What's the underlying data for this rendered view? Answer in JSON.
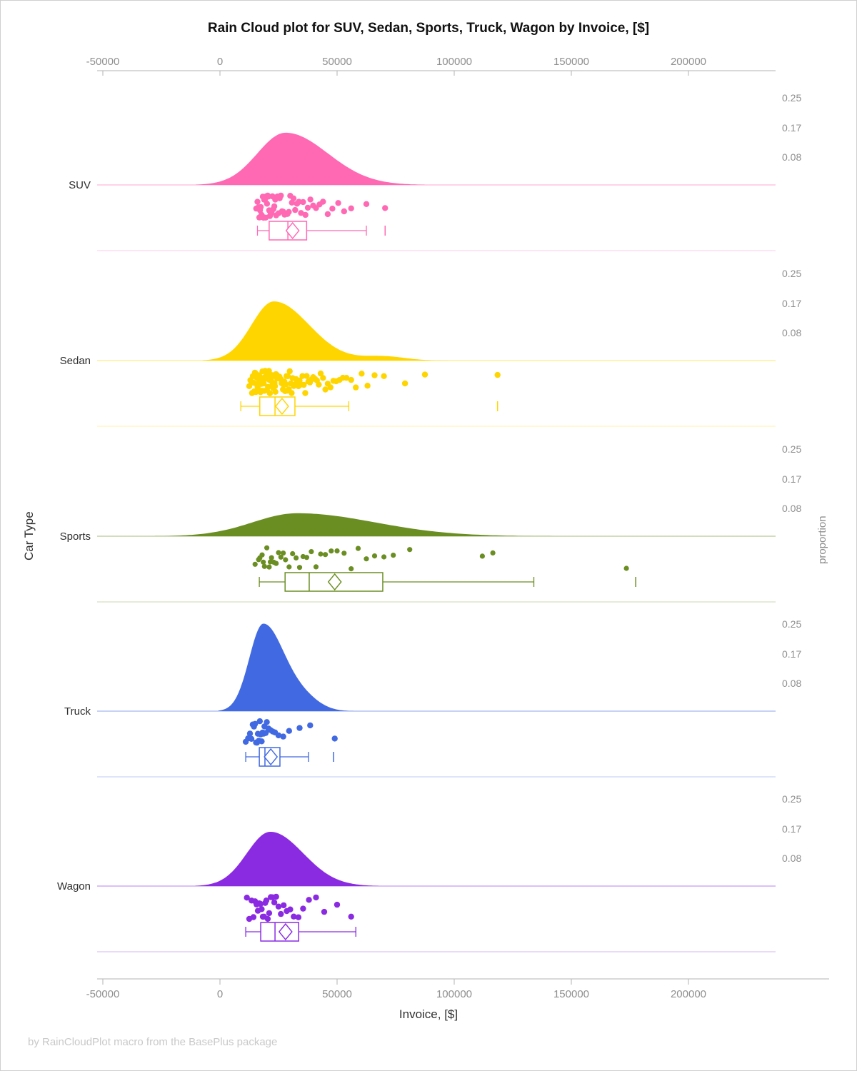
{
  "title": "Rain Cloud plot for SUV, Sedan, Sports, Truck, Wagon by Invoice, [$]",
  "footer": "by RainCloudPlot macro from the BasePlus package",
  "axes": {
    "x_label": "Invoice, [$]",
    "y_label": "Car Type",
    "y2_label": "proportion",
    "x_tick_labels": [
      "-50000",
      "0",
      "50000",
      "100000",
      "150000",
      "200000"
    ],
    "proportion_tick_labels": [
      "0.25",
      "0.17",
      "0.08"
    ]
  },
  "chart_data": {
    "type": "raincloud (half-violin density + jittered scatter + box plot per category)",
    "title": "Rain Cloud plot for SUV, Sedan, Sports, Truck, Wagon by Invoice, [$]",
    "xlabel": "Invoice, [$]",
    "ylabel": "Car Type",
    "y2label": "proportion",
    "x_unit": "USD",
    "x_ticks": [
      -50000,
      0,
      50000,
      100000,
      150000,
      200000
    ],
    "x_range": [
      -52500,
      237000
    ],
    "proportion_ticks": [
      0.25,
      0.17,
      0.08
    ],
    "categories": [
      "SUV",
      "Sedan",
      "Sports",
      "Truck",
      "Wagon"
    ],
    "series": [
      {
        "name": "SUV",
        "color": "#FF69B4",
        "density": {
          "peak_at": 28000,
          "sigma_left": 12000,
          "sigma_right": 18000,
          "peak_proportion": 0.15
        },
        "box": {
          "whisker_low": 16000,
          "q1": 21000,
          "median": 29000,
          "mean": 31000,
          "q3": 37000,
          "whisker_high": 62500,
          "outliers": [
            70500
          ]
        },
        "points": [
          15500,
          16000,
          16400,
          16800,
          17100,
          17400,
          17700,
          18000,
          18300,
          18600,
          18900,
          19200,
          19500,
          19800,
          20100,
          20400,
          20700,
          21000,
          21300,
          21700,
          22000,
          22400,
          22800,
          23200,
          23600,
          24000,
          24500,
          25000,
          25500,
          26000,
          26500,
          27000,
          27600,
          28200,
          28800,
          29400,
          30000,
          30700,
          31400,
          32100,
          32900,
          33700,
          34600,
          35500,
          36500,
          37500,
          38600,
          39800,
          41000,
          42500,
          44000,
          46000,
          48000,
          50500,
          53000,
          56000,
          62500,
          70500
        ]
      },
      {
        "name": "Sedan",
        "color": "#FFD500",
        "density": {
          "peak_at": 23000,
          "sigma_left": 9500,
          "sigma_right": 15000,
          "peak_proportion": 0.17,
          "bump": {
            "at": 70000,
            "sigma": 9000,
            "proportion": 0.012
          }
        },
        "box": {
          "whisker_low": 8900,
          "q1": 17000,
          "median": 23500,
          "mean": 26500,
          "q3": 32000,
          "whisker_high": 55000,
          "outliers": [
            118500
          ]
        },
        "points": [
          12500,
          13000,
          13400,
          13700,
          14000,
          14300,
          14600,
          14900,
          15100,
          15300,
          15500,
          15700,
          15900,
          16100,
          16300,
          16500,
          16700,
          16900,
          17100,
          17300,
          17500,
          17700,
          17900,
          18100,
          18300,
          18500,
          18700,
          18900,
          19100,
          19300,
          19500,
          19700,
          19900,
          20100,
          20300,
          20500,
          20700,
          20900,
          21100,
          21300,
          21500,
          21700,
          21900,
          22100,
          22300,
          22500,
          22700,
          22900,
          23100,
          23300,
          23500,
          23700,
          23900,
          24100,
          24300,
          24500,
          24700,
          24900,
          25100,
          25400,
          25700,
          26000,
          26300,
          26600,
          26900,
          27200,
          27500,
          27800,
          28100,
          28400,
          28700,
          29000,
          29400,
          29800,
          30200,
          30600,
          31000,
          31500,
          32000,
          32500,
          33000,
          33500,
          34000,
          34600,
          35200,
          35800,
          36400,
          37000,
          37700,
          38400,
          39100,
          39800,
          40600,
          41400,
          42200,
          43000,
          44000,
          45000,
          46000,
          47200,
          48400,
          49600,
          51000,
          52500,
          54000,
          56000,
          58000,
          60500,
          63000,
          66000,
          70000,
          79000,
          87500,
          118500
        ]
      },
      {
        "name": "Sports",
        "color": "#6B8E23",
        "density": {
          "peak_at": 33000,
          "sigma_left": 19000,
          "sigma_right": 33000,
          "peak_proportion": 0.066
        },
        "box": {
          "whisker_low": 16800,
          "q1": 27800,
          "median": 38100,
          "mean": 49000,
          "q3": 69500,
          "whisker_high": 134000,
          "outliers": [
            177500
          ]
        },
        "points": [
          15000,
          16500,
          17000,
          18000,
          18500,
          19000,
          20000,
          21000,
          21500,
          22000,
          23000,
          24000,
          25000,
          26000,
          27000,
          28000,
          29500,
          31000,
          32500,
          34000,
          35500,
          37000,
          39000,
          41000,
          43000,
          45000,
          47500,
          50000,
          53000,
          56000,
          59000,
          62500,
          66000,
          70000,
          74000,
          81000,
          112000,
          116500,
          173500
        ]
      },
      {
        "name": "Truck",
        "color": "#4169E1",
        "density": {
          "peak_at": 18500,
          "sigma_left": 6000,
          "sigma_right": 9000,
          "peak_proportion": 0.25,
          "bump": {
            "at": 36000,
            "sigma": 7000,
            "proportion": 0.03
          }
        },
        "box": {
          "whisker_low": 11000,
          "q1": 16800,
          "median": 19200,
          "mean": 21700,
          "q3": 25600,
          "whisker_high": 37800,
          "outliers": [
            48500
          ]
        },
        "points": [
          11000,
          12000,
          12800,
          13400,
          14000,
          14500,
          15000,
          15400,
          15800,
          16200,
          16600,
          17000,
          17400,
          17800,
          18200,
          18600,
          19000,
          19500,
          20000,
          20700,
          21500,
          22500,
          23500,
          25000,
          27000,
          29500,
          34000,
          38500,
          49000
        ]
      },
      {
        "name": "Wagon",
        "color": "#8A2BE2",
        "density": {
          "peak_at": 21500,
          "sigma_left": 10000,
          "sigma_right": 14000,
          "peak_proportion": 0.156
        },
        "box": {
          "whisker_low": 11000,
          "q1": 17400,
          "median": 23500,
          "mean": 28000,
          "q3": 33600,
          "whisker_high": 58000,
          "outliers": []
        },
        "points": [
          11500,
          12500,
          13500,
          14300,
          15000,
          15600,
          16200,
          16800,
          17300,
          17800,
          18300,
          18800,
          19300,
          19800,
          20400,
          21000,
          21700,
          22400,
          23200,
          24000,
          25000,
          26000,
          27200,
          28500,
          30000,
          31500,
          33500,
          35500,
          38000,
          41000,
          44500,
          50000,
          56000
        ]
      }
    ],
    "legend": "none",
    "grid": "off"
  },
  "colors": {
    "axis_line": "#b3b3b3",
    "tick_label": "#8f8f8f",
    "title_text": "#111111",
    "category_text": "#2f2f2f",
    "footer_text": "#c9c9c9"
  }
}
